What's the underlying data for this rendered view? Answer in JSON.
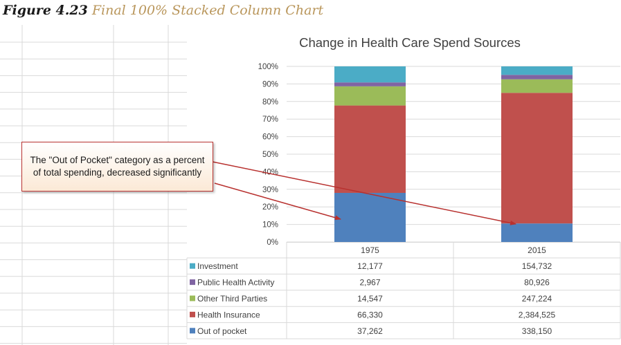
{
  "caption": {
    "figure_number": "Figure 4.23",
    "figure_title": "Final 100% Stacked Column Chart"
  },
  "callout": {
    "text": "The \"Out of Pocket\" category as a percent of total spending, decreased significantly"
  },
  "chart_data": {
    "type": "bar",
    "stacked": "percent",
    "title": "Change in Health Care Spend Sources",
    "categories": [
      "1975",
      "2015"
    ],
    "y_ticks": [
      "0%",
      "10%",
      "20%",
      "30%",
      "40%",
      "50%",
      "60%",
      "70%",
      "80%",
      "90%",
      "100%"
    ],
    "ylim": [
      0,
      100
    ],
    "grid": true,
    "legend": "data table",
    "series": [
      {
        "name": "Out of pocket",
        "color": "#4f81bd",
        "values": [
          37262,
          338150
        ],
        "labels": [
          "37,262",
          "338,150"
        ]
      },
      {
        "name": "Health Insurance",
        "color": "#c0504d",
        "values": [
          66330,
          2384525
        ],
        "labels": [
          "66,330",
          "2,384,525"
        ]
      },
      {
        "name": "Other Third Parties",
        "color": "#9bbb59",
        "values": [
          14547,
          247224
        ],
        "labels": [
          "14,547",
          "247,224"
        ]
      },
      {
        "name": "Public Health Activity",
        "color": "#8064a2",
        "values": [
          2967,
          80926
        ],
        "labels": [
          "2,967",
          "80,926"
        ]
      },
      {
        "name": "Investment",
        "color": "#4bacc6",
        "values": [
          12177,
          154732
        ],
        "labels": [
          "12,177",
          "154,732"
        ]
      }
    ]
  }
}
